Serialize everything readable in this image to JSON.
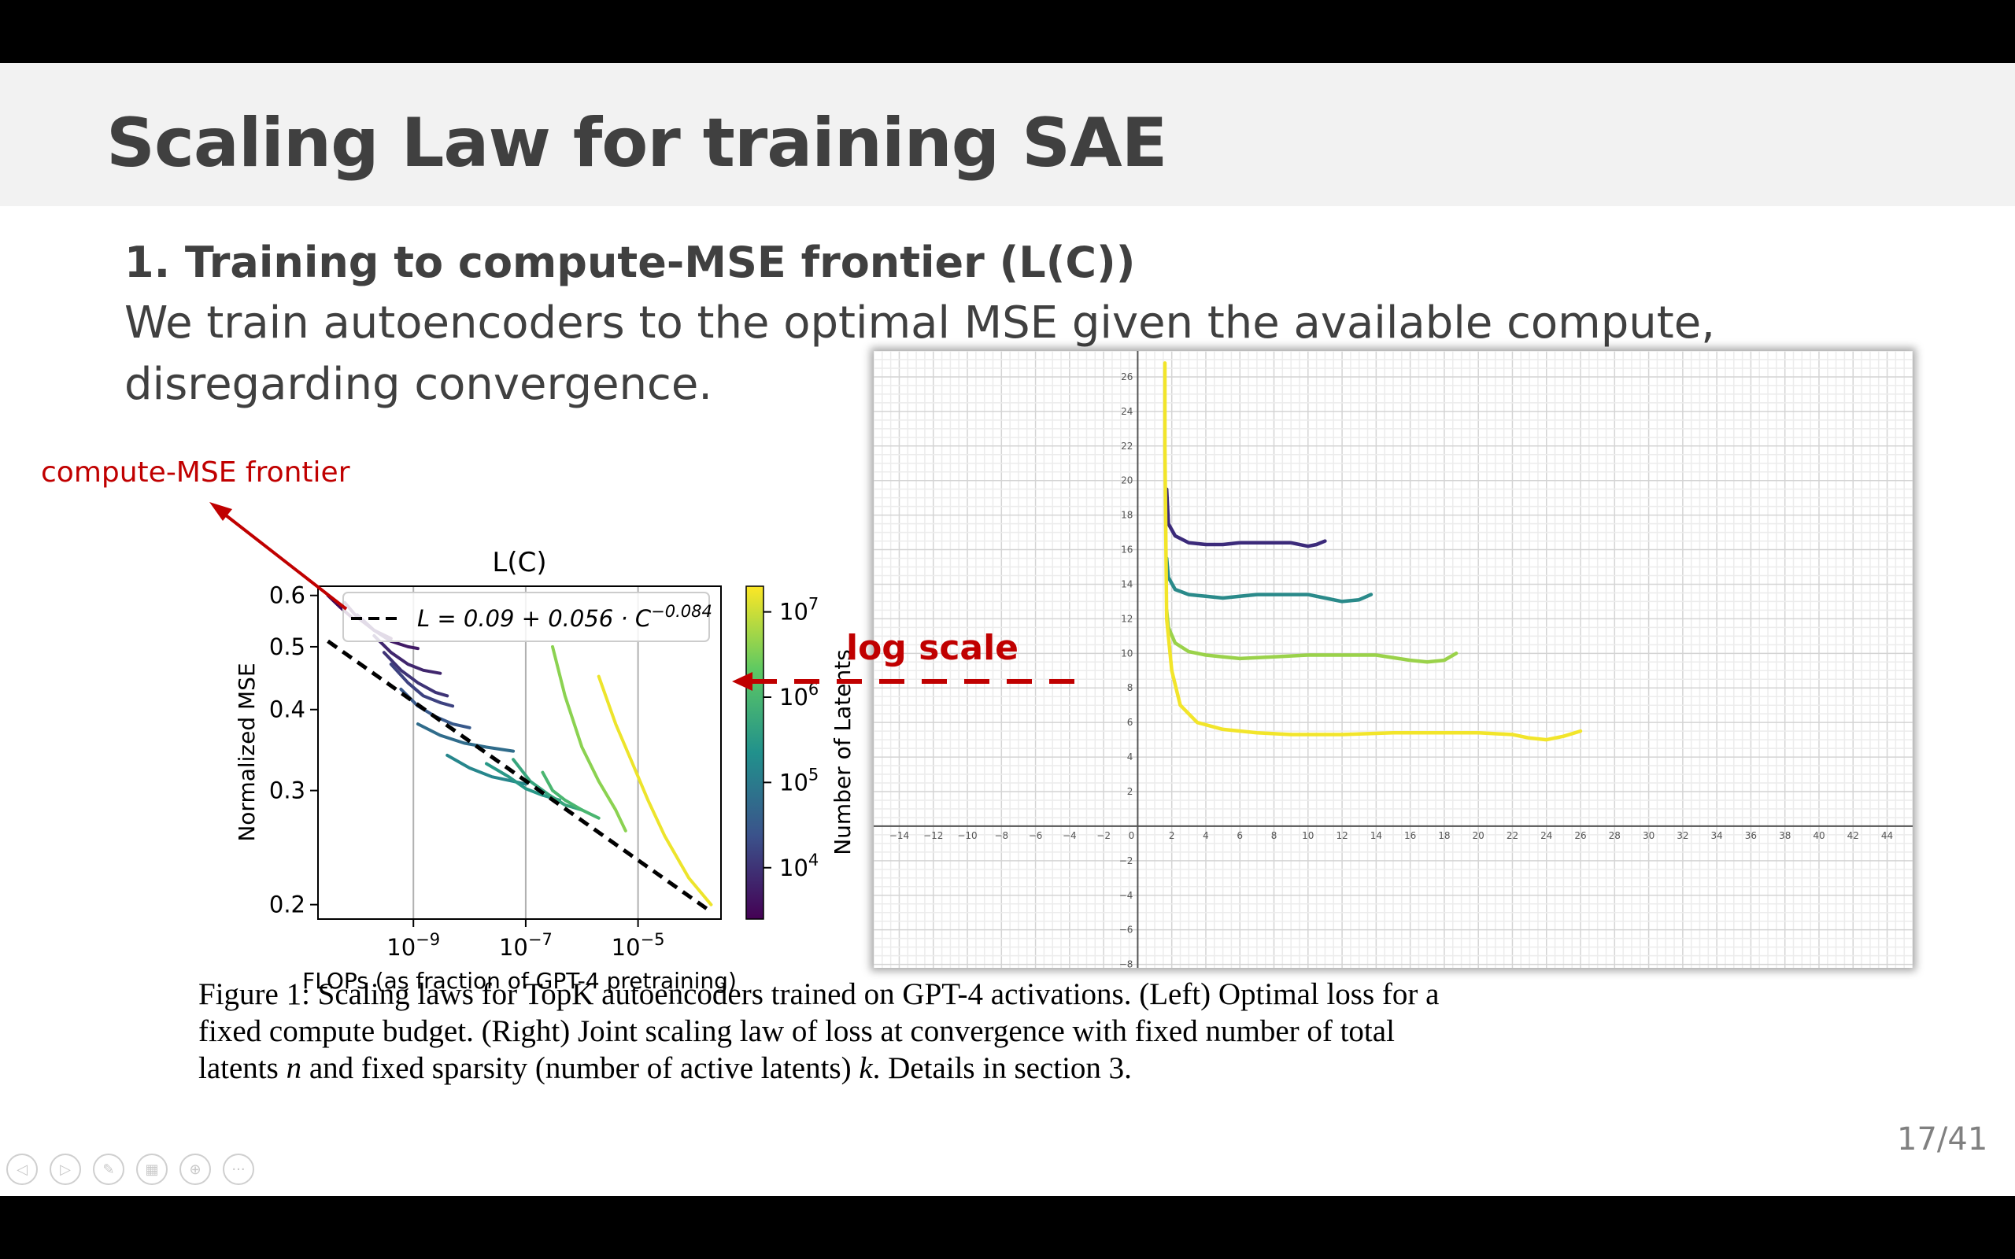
{
  "slide": {
    "title": "Scaling Law for training SAE",
    "heading": "1. Training to compute-MSE frontier (L(C))",
    "body": "We train autoencoders to the optimal MSE given the available compute, disregarding convergence.",
    "page_number": "17/41",
    "annotations": {
      "frontier": "compute-MSE frontier",
      "log_scale": "log scale",
      "color": "#c00000"
    },
    "caption": {
      "line1": "Figure 1: Scaling laws for TopK autoencoders trained on GPT-4 activations. (Left) Optimal loss for a",
      "line2": "fixed compute budget. (Right) Joint scaling law of loss at convergence with fixed number of total",
      "line3_a": "latents ",
      "var_n": "n",
      "line3_b": " and fixed sparsity (number of active latents) ",
      "var_k": "k",
      "line3_c": ". Details in section 3."
    },
    "nav_icons": [
      "prev-icon",
      "next-icon",
      "pen-icon",
      "slides-icon",
      "zoom-icon",
      "more-icon"
    ]
  },
  "chart_data": [
    {
      "type": "line",
      "title": "L(C)",
      "xlabel": "FLOPs (as fraction of GPT-4 pretraining)",
      "ylabel": "Normalized MSE",
      "x_scale": "log",
      "y_scale": "log",
      "xlim": [
        2e-11,
        0.0003
      ],
      "ylim": [
        0.19,
        0.62
      ],
      "x_ticks": [
        {
          "value": 1e-09,
          "base": "10",
          "exp": "−9"
        },
        {
          "value": 1e-07,
          "base": "10",
          "exp": "−7"
        },
        {
          "value": 1e-05,
          "base": "10",
          "exp": "−5"
        }
      ],
      "y_ticks": [
        {
          "value": 0.6,
          "label": "0.6"
        },
        {
          "value": 0.5,
          "label": "0.5"
        },
        {
          "value": 0.4,
          "label": "0.4"
        },
        {
          "value": 0.3,
          "label": "0.3"
        },
        {
          "value": 0.2,
          "label": "0.2"
        }
      ],
      "legend": {
        "placement": "top-right",
        "formula_prefix": "L = 0.09 + 0.056 · C",
        "formula_exp": "−0.084"
      },
      "colorbar": {
        "label": "Number of Latents",
        "scale": "log",
        "range": [
          2500,
          20000000
        ],
        "ticks": [
          {
            "value": 10000000.0,
            "base": "10",
            "exp": "7"
          },
          {
            "value": 1000000.0,
            "base": "10",
            "exp": "6"
          },
          {
            "value": 100000.0,
            "base": "10",
            "exp": "5"
          },
          {
            "value": 10000.0,
            "base": "10",
            "exp": "4"
          }
        ],
        "colormap": "viridis"
      },
      "frontier": {
        "style": "dashed",
        "color": "#000000",
        "x": [
          3e-11,
          0.0002
        ],
        "y": [
          0.51,
          0.195
        ]
      },
      "series": [
        {
          "latents": 3000,
          "x": [
            3e-11,
            5e-11,
            8e-11
          ],
          "y": [
            0.6,
            0.575,
            0.555
          ]
        },
        {
          "latents": 4000,
          "x": [
            6e-11,
            1e-10,
            2e-10,
            4e-10
          ],
          "y": [
            0.585,
            0.555,
            0.53,
            0.515
          ]
        },
        {
          "latents": 5000,
          "x": [
            1e-10,
            2e-10,
            4e-10,
            8e-10,
            1.2e-09
          ],
          "y": [
            0.56,
            0.53,
            0.51,
            0.5,
            0.497
          ]
        },
        {
          "latents": 7000,
          "x": [
            2e-10,
            4e-10,
            8e-10,
            1.5e-09,
            3e-09
          ],
          "y": [
            0.52,
            0.49,
            0.47,
            0.46,
            0.455
          ]
        },
        {
          "latents": 10000,
          "x": [
            3e-10,
            6e-10,
            1.2e-09,
            2.5e-09,
            4e-09
          ],
          "y": [
            0.49,
            0.46,
            0.44,
            0.425,
            0.42
          ]
        },
        {
          "latents": 15000,
          "x": [
            4e-10,
            8e-10,
            1.5e-09,
            3e-09,
            5e-09
          ],
          "y": [
            0.47,
            0.44,
            0.42,
            0.41,
            0.405
          ]
        },
        {
          "latents": 30000,
          "x": [
            6e-10,
            1.2e-09,
            2.5e-09,
            5e-09,
            1e-08
          ],
          "y": [
            0.43,
            0.405,
            0.39,
            0.38,
            0.375
          ]
        },
        {
          "latents": 60000,
          "x": [
            1.2e-09,
            3e-09,
            8e-09,
            2e-08,
            6e-08
          ],
          "y": [
            0.38,
            0.365,
            0.355,
            0.35,
            0.345
          ]
        },
        {
          "latents": 150000,
          "x": [
            4e-09,
            1e-08,
            2.5e-08,
            6e-08,
            1e-07
          ],
          "y": [
            0.34,
            0.325,
            0.315,
            0.31,
            0.307
          ]
        },
        {
          "latents": 300000,
          "x": [
            2e-08,
            5e-08,
            1e-07,
            2e-07,
            4e-07
          ],
          "y": [
            0.33,
            0.315,
            0.302,
            0.295,
            0.29
          ]
        },
        {
          "latents": 500000,
          "x": [
            6e-08,
            1.2e-07,
            2.5e-07,
            5e-07,
            1e-06
          ],
          "y": [
            0.335,
            0.31,
            0.296,
            0.285,
            0.28
          ]
        },
        {
          "latents": 1000000,
          "x": [
            2e-07,
            3e-07,
            5e-07,
            1e-06,
            2e-06
          ],
          "y": [
            0.32,
            0.3,
            0.29,
            0.28,
            0.272
          ]
        },
        {
          "latents": 4000000,
          "x": [
            3e-07,
            5e-07,
            1e-06,
            2e-06,
            4e-06,
            6e-06
          ],
          "y": [
            0.5,
            0.42,
            0.35,
            0.31,
            0.28,
            0.26
          ]
        },
        {
          "latents": 16000000,
          "x": [
            2e-06,
            4e-06,
            8e-06,
            1.5e-05,
            3e-05,
            8e-05,
            0.0002
          ],
          "y": [
            0.45,
            0.38,
            0.33,
            0.29,
            0.255,
            0.22,
            0.2
          ]
        }
      ]
    },
    {
      "type": "line",
      "xlim": [
        -15.5,
        45.5
      ],
      "ylim": [
        -8.2,
        27.5
      ],
      "x_ticks": [
        -14,
        -12,
        -10,
        -8,
        -6,
        -4,
        -2,
        0,
        2,
        4,
        6,
        8,
        10,
        12,
        14,
        16,
        18,
        20,
        22,
        24,
        26,
        28,
        30,
        32,
        34,
        36,
        38,
        40,
        42,
        44
      ],
      "y_ticks": [
        -8,
        -6,
        -4,
        -2,
        2,
        4,
        6,
        8,
        10,
        12,
        14,
        16,
        18,
        20,
        22,
        24,
        26
      ],
      "x_tick_labels": [
        "−14",
        "−12",
        "−10",
        "−8",
        "−6",
        "−4",
        "−2",
        "0",
        "2",
        "4",
        "6",
        "8",
        "10",
        "12",
        "14",
        "16",
        "18",
        "20",
        "22",
        "24",
        "26",
        "28",
        "30",
        "32",
        "34",
        "36",
        "38",
        "40",
        "42",
        "44"
      ],
      "y_tick_labels": [
        "−8",
        "−6",
        "−4",
        "−2",
        "2",
        "4",
        "6",
        "8",
        "10",
        "12",
        "14",
        "16",
        "18",
        "20",
        "22",
        "24",
        "26"
      ],
      "grid": true,
      "series": [
        {
          "color": "#3b2a7a",
          "x": [
            1.7,
            1.8,
            2.2,
            3,
            4,
            5,
            6,
            7,
            8,
            9,
            10,
            10.5,
            11
          ],
          "y": [
            19.5,
            17.5,
            16.8,
            16.4,
            16.3,
            16.3,
            16.4,
            16.4,
            16.4,
            16.4,
            16.2,
            16.3,
            16.5
          ]
        },
        {
          "color": "#2a8a8a",
          "x": [
            1.7,
            1.8,
            2.2,
            3,
            4,
            5,
            6,
            7,
            8,
            9,
            10,
            11,
            12,
            13,
            13.7
          ],
          "y": [
            15.5,
            14.4,
            13.7,
            13.4,
            13.3,
            13.2,
            13.3,
            13.4,
            13.4,
            13.4,
            13.4,
            13.2,
            13.0,
            13.1,
            13.4
          ]
        },
        {
          "color": "#9ad24a",
          "x": [
            1.7,
            1.8,
            2.2,
            3,
            4,
            5,
            6,
            8,
            10,
            12,
            14,
            16,
            17,
            18,
            18.7
          ],
          "y": [
            12.5,
            11.5,
            10.6,
            10.1,
            9.9,
            9.8,
            9.7,
            9.8,
            9.9,
            9.9,
            9.9,
            9.6,
            9.5,
            9.6,
            10.0
          ]
        },
        {
          "color": "#f2e52a",
          "x": [
            1.6,
            1.6,
            1.7,
            2.0,
            2.5,
            3.5,
            5,
            7,
            9,
            12,
            15,
            18,
            20,
            22,
            23,
            24,
            25,
            26
          ],
          "y": [
            26.8,
            22,
            12,
            9,
            7,
            6,
            5.6,
            5.4,
            5.3,
            5.3,
            5.4,
            5.4,
            5.4,
            5.3,
            5.1,
            5.0,
            5.2,
            5.5
          ]
        }
      ]
    }
  ]
}
